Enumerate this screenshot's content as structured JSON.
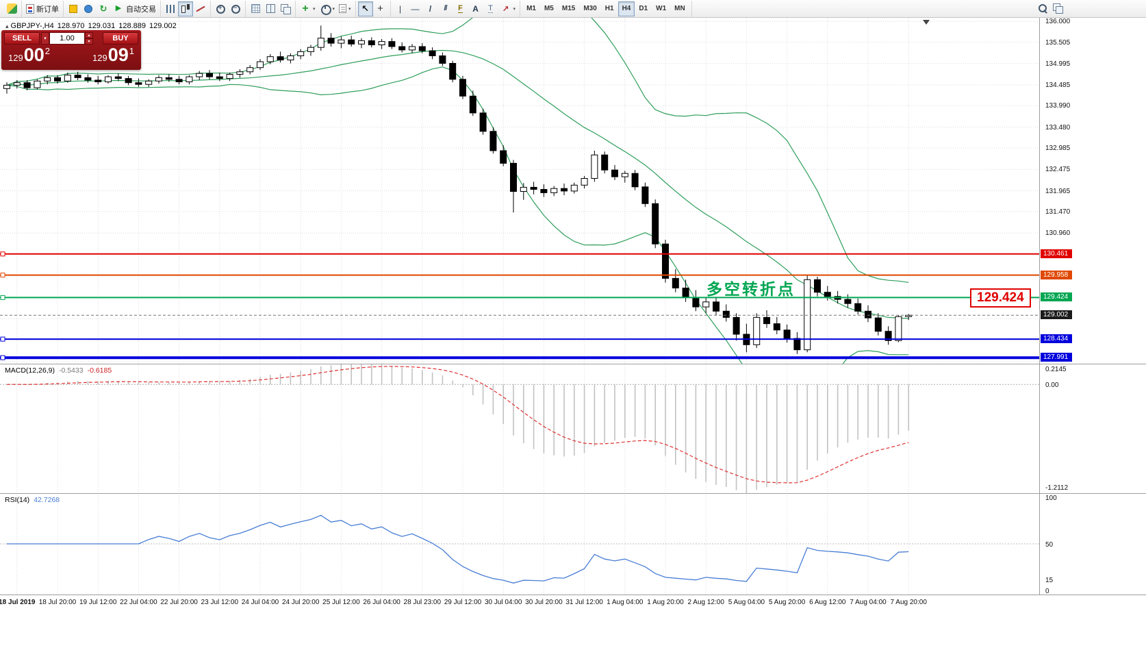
{
  "app": {
    "ohlc_header": {
      "toggle": "▴",
      "symbol_period": "GBPJPY-,H4",
      "open": "128.970",
      "high": "129.031",
      "low": "128.889",
      "close": "129.002"
    }
  },
  "toolbar": {
    "groups": [
      {
        "name": "group-app",
        "items": [
          {
            "name": "app-logo",
            "icon": "logo",
            "static": true
          }
        ]
      },
      {
        "name": "group-order",
        "items": [
          {
            "name": "new-order-button",
            "icon": "neworder",
            "label": "新订单"
          }
        ]
      },
      {
        "name": "group-launch",
        "items": [
          {
            "name": "metaeditor-button",
            "icon": "editor"
          },
          {
            "name": "market-button",
            "icon": "market"
          },
          {
            "name": "refresh-button",
            "icon": "refresh"
          },
          {
            "name": "autotrading-button",
            "icon": "play",
            "label": "自动交易"
          }
        ]
      },
      {
        "name": "group-chart-type",
        "items": [
          {
            "name": "bar-chart-button",
            "icon": "bars"
          },
          {
            "name": "candlestick-chart-button",
            "icon": "candles",
            "active": true
          },
          {
            "name": "line-chart-button",
            "icon": "linechart"
          }
        ]
      },
      {
        "name": "group-zoom",
        "items": [
          {
            "name": "zoom-in-button",
            "icon": "zoomin"
          },
          {
            "name": "zoom-out-button",
            "icon": "zoomout"
          }
        ]
      },
      {
        "name": "group-windows",
        "items": [
          {
            "name": "auto-arrange-button",
            "icon": "gridicon"
          },
          {
            "name": "tile-windows-button",
            "icon": "tile"
          },
          {
            "name": "cascade-windows-button",
            "icon": "cascade"
          }
        ]
      },
      {
        "name": "group-insert",
        "items": [
          {
            "name": "indicators-button",
            "icon": "plusind",
            "caret": true
          },
          {
            "name": "periods-button",
            "icon": "clock",
            "caret": true
          },
          {
            "name": "templates-button",
            "icon": "template",
            "caret": true
          }
        ]
      },
      {
        "name": "group-cursor",
        "items": [
          {
            "name": "cursor-button",
            "icon": "cursor",
            "active": true
          },
          {
            "name": "crosshair-button",
            "icon": "crosshair"
          }
        ]
      },
      {
        "name": "group-objects",
        "items": [
          {
            "name": "vertical-line-button",
            "icon": "vline"
          },
          {
            "name": "horizontal-line-button",
            "icon": "hline"
          },
          {
            "name": "trendline-button",
            "icon": "tline"
          },
          {
            "name": "channel-button",
            "icon": "channel"
          },
          {
            "name": "fibonacci-button",
            "icon": "fibo"
          },
          {
            "name": "text-button",
            "icon": "textT"
          },
          {
            "name": "label-button",
            "icon": "labelT"
          },
          {
            "name": "arrows-button",
            "icon": "arrows",
            "caret": true
          }
        ]
      },
      {
        "name": "group-timeframes",
        "items": [
          {
            "name": "tf-m1-button",
            "label": "M1",
            "tf": true
          },
          {
            "name": "tf-m5-button",
            "label": "M5",
            "tf": true
          },
          {
            "name": "tf-m15-button",
            "label": "M15",
            "tf": true
          },
          {
            "name": "tf-m30-button",
            "label": "M30",
            "tf": true
          },
          {
            "name": "tf-h1-button",
            "label": "H1",
            "tf": true
          },
          {
            "name": "tf-h4-button",
            "label": "H4",
            "tf": true,
            "active": true
          },
          {
            "name": "tf-d1-button",
            "label": "D1",
            "tf": true
          },
          {
            "name": "tf-w1-button",
            "label": "W1",
            "tf": true
          },
          {
            "name": "tf-mn-button",
            "label": "MN",
            "tf": true
          }
        ]
      }
    ],
    "right_items": [
      {
        "name": "search-button",
        "icon": "search"
      },
      {
        "name": "layouts-button",
        "icon": "cascade"
      }
    ]
  },
  "trade_panel": {
    "sell_label": "SELL",
    "buy_label": "BUY",
    "volume": "1.00",
    "bid": {
      "prefix": "129",
      "big": "00",
      "sup": "2"
    },
    "ask": {
      "prefix": "129",
      "big": "09",
      "sup": "1"
    }
  },
  "annotation": {
    "text": "多空转折点",
    "color": "#00a651"
  },
  "callout": {
    "text": "129.424",
    "color": "#e00000"
  },
  "indicators": {
    "macd": {
      "name": "MACD(12,26,9)",
      "value1": "-0.5433",
      "value2": "-0.6185",
      "fast": 12,
      "slow": 26,
      "signal": 9,
      "scale_labels": [
        {
          "v": 0.2145,
          "text": "0.2145"
        },
        {
          "v": 0,
          "text": "0.00"
        },
        {
          "v": -1.2112,
          "text": "-1.2112"
        }
      ]
    },
    "rsi": {
      "name": "RSI(14)",
      "value": "42.7268",
      "period": 14,
      "scale_labels": [
        {
          "v": 100,
          "text": "100"
        },
        {
          "v": 50,
          "text": "50"
        },
        {
          "v": 15,
          "text": "15"
        },
        {
          "v": 0,
          "text": "0"
        }
      ]
    }
  },
  "chart_data": {
    "type": "candlestick",
    "symbol": "GBPJPY-",
    "timeframe": "H4",
    "ohlc_current": {
      "open": 128.97,
      "high": 129.031,
      "low": 128.889,
      "close": 129.002
    },
    "price_scale": [
      136.0,
      135.505,
      134.995,
      134.485,
      133.99,
      133.48,
      132.985,
      132.475,
      131.965,
      131.47,
      130.96
    ],
    "extra_gridlines": [
      130.45,
      129.94,
      129.43,
      128.92,
      128.41,
      127.9
    ],
    "levels": [
      {
        "price": 130.461,
        "label": "130.461",
        "color": "#e00000",
        "width": 2
      },
      {
        "price": 129.958,
        "label": "129.958",
        "color": "#e04800",
        "width": 2
      },
      {
        "price": 129.424,
        "label": "129.424",
        "color": "#00a651",
        "width": 2
      },
      {
        "price": 128.434,
        "label": "128.434",
        "color": "#0000dd",
        "width": 2
      },
      {
        "price": 127.991,
        "label": "127.991",
        "color": "#0000dd",
        "width": 4
      }
    ],
    "current_price": {
      "price": 129.002,
      "label": "129.002",
      "color": "#1a1a1a"
    },
    "bollinger": {
      "period": 20,
      "deviation": 2
    },
    "colors": {
      "up": "#ffffff",
      "down": "#000000",
      "outline": "#000000",
      "bollinger": "#2e9e5b",
      "grid": "#dcdcdc",
      "macd_hist": "#c2c2c2",
      "macd_signal": "#e03030",
      "rsi": "#477dd4",
      "background": "#ffffff"
    },
    "candles": [
      [
        134.4,
        134.55,
        134.28,
        134.48
      ],
      [
        134.48,
        134.6,
        134.4,
        134.54
      ],
      [
        134.54,
        134.6,
        134.36,
        134.42
      ],
      [
        134.42,
        134.62,
        134.38,
        134.58
      ],
      [
        134.58,
        134.72,
        134.5,
        134.66
      ],
      [
        134.66,
        134.72,
        134.52,
        134.58
      ],
      [
        134.58,
        134.78,
        134.54,
        134.72
      ],
      [
        134.72,
        134.8,
        134.6,
        134.66
      ],
      [
        134.66,
        134.74,
        134.54,
        134.6
      ],
      [
        134.6,
        134.7,
        134.5,
        134.56
      ],
      [
        134.56,
        134.72,
        134.52,
        134.68
      ],
      [
        134.68,
        134.76,
        134.58,
        134.64
      ],
      [
        134.64,
        134.7,
        134.48,
        134.54
      ],
      [
        134.54,
        134.64,
        134.44,
        134.5
      ],
      [
        134.5,
        134.62,
        134.44,
        134.58
      ],
      [
        134.58,
        134.72,
        134.52,
        134.66
      ],
      [
        134.66,
        134.74,
        134.56,
        134.62
      ],
      [
        134.62,
        134.7,
        134.5,
        134.56
      ],
      [
        134.56,
        134.72,
        134.5,
        134.68
      ],
      [
        134.68,
        134.82,
        134.6,
        134.76
      ],
      [
        134.76,
        134.84,
        134.62,
        134.68
      ],
      [
        134.68,
        134.78,
        134.58,
        134.64
      ],
      [
        134.64,
        134.78,
        134.58,
        134.74
      ],
      [
        134.74,
        134.86,
        134.66,
        134.8
      ],
      [
        134.8,
        134.96,
        134.74,
        134.9
      ],
      [
        134.9,
        135.1,
        134.84,
        135.04
      ],
      [
        135.04,
        135.22,
        134.98,
        135.16
      ],
      [
        135.16,
        135.28,
        135.02,
        135.08
      ],
      [
        135.08,
        135.24,
        135.0,
        135.18
      ],
      [
        135.18,
        135.34,
        135.1,
        135.28
      ],
      [
        135.28,
        135.44,
        135.18,
        135.38
      ],
      [
        135.38,
        135.9,
        135.3,
        135.6
      ],
      [
        135.6,
        135.72,
        135.4,
        135.48
      ],
      [
        135.48,
        135.64,
        135.36,
        135.56
      ],
      [
        135.56,
        135.66,
        135.4,
        135.46
      ],
      [
        135.46,
        135.6,
        135.36,
        135.54
      ],
      [
        135.54,
        135.62,
        135.38,
        135.44
      ],
      [
        135.44,
        135.58,
        135.34,
        135.52
      ],
      [
        135.52,
        135.6,
        135.34,
        135.4
      ],
      [
        135.4,
        135.5,
        135.26,
        135.32
      ],
      [
        135.32,
        135.46,
        135.24,
        135.4
      ],
      [
        135.4,
        135.48,
        135.24,
        135.3
      ],
      [
        135.3,
        135.38,
        135.1,
        135.18
      ],
      [
        135.18,
        135.26,
        134.94,
        135.0
      ],
      [
        135.0,
        135.06,
        134.55,
        134.62
      ],
      [
        134.62,
        134.7,
        134.15,
        134.22
      ],
      [
        134.22,
        134.35,
        133.75,
        133.82
      ],
      [
        133.82,
        133.92,
        133.3,
        133.38
      ],
      [
        133.38,
        133.48,
        132.85,
        132.92
      ],
      [
        132.92,
        133.05,
        132.55,
        132.62
      ],
      [
        132.62,
        132.7,
        131.45,
        131.95
      ],
      [
        131.95,
        132.15,
        131.75,
        132.05
      ],
      [
        132.05,
        132.18,
        131.88,
        132.0
      ],
      [
        132.0,
        132.12,
        131.82,
        131.92
      ],
      [
        131.92,
        132.08,
        131.84,
        132.02
      ],
      [
        132.02,
        132.14,
        131.86,
        131.96
      ],
      [
        131.96,
        132.16,
        131.9,
        132.1
      ],
      [
        132.1,
        132.32,
        132.02,
        132.26
      ],
      [
        132.26,
        132.92,
        132.18,
        132.82
      ],
      [
        132.82,
        132.9,
        132.38,
        132.46
      ],
      [
        132.46,
        132.58,
        132.22,
        132.3
      ],
      [
        132.3,
        132.44,
        132.16,
        132.38
      ],
      [
        132.38,
        132.46,
        131.98,
        132.06
      ],
      [
        132.06,
        132.16,
        131.58,
        131.66
      ],
      [
        131.66,
        131.76,
        130.6,
        130.7
      ],
      [
        130.7,
        130.8,
        129.78,
        129.88
      ],
      [
        129.88,
        130.1,
        129.55,
        129.65
      ],
      [
        129.65,
        129.85,
        129.32,
        129.42
      ],
      [
        129.42,
        129.6,
        129.1,
        129.2
      ],
      [
        129.2,
        129.42,
        129.05,
        129.32
      ],
      [
        129.32,
        129.44,
        129.0,
        129.1
      ],
      [
        129.1,
        129.26,
        128.85,
        128.95
      ],
      [
        128.95,
        129.05,
        128.4,
        128.55
      ],
      [
        128.55,
        128.8,
        128.12,
        128.3
      ],
      [
        128.3,
        129.05,
        128.22,
        128.95
      ],
      [
        128.95,
        129.12,
        128.7,
        128.8
      ],
      [
        128.8,
        128.96,
        128.55,
        128.65
      ],
      [
        128.65,
        128.78,
        128.35,
        128.45
      ],
      [
        128.45,
        128.6,
        128.08,
        128.18
      ],
      [
        128.18,
        129.95,
        128.12,
        129.85
      ],
      [
        129.85,
        129.92,
        129.45,
        129.55
      ],
      [
        129.55,
        129.7,
        129.35,
        129.45
      ],
      [
        129.45,
        129.58,
        129.28,
        129.38
      ],
      [
        129.38,
        129.5,
        129.18,
        129.28
      ],
      [
        129.28,
        129.4,
        129.02,
        129.1
      ],
      [
        129.1,
        129.24,
        128.84,
        128.94
      ],
      [
        128.94,
        129.05,
        128.52,
        128.62
      ],
      [
        128.62,
        128.74,
        128.3,
        128.4
      ],
      [
        128.4,
        129.0,
        128.36,
        128.97
      ],
      [
        128.97,
        129.031,
        128.889,
        129.002
      ]
    ],
    "time_ticks": [
      {
        "i": 1,
        "label": "18 Jul 2019"
      },
      {
        "i": 5,
        "label": "18 Jul 20:00"
      },
      {
        "i": 9,
        "label": "19 Jul 12:00"
      },
      {
        "i": 13,
        "label": "22 Jul 04:00"
      },
      {
        "i": 17,
        "label": "22 Jul 20:00"
      },
      {
        "i": 21,
        "label": "23 Jul 12:00"
      },
      {
        "i": 25,
        "label": "24 Jul 04:00"
      },
      {
        "i": 29,
        "label": "24 Jul 20:00"
      },
      {
        "i": 33,
        "label": "25 Jul 12:00"
      },
      {
        "i": 37,
        "label": "26 Jul 04:00"
      },
      {
        "i": 41,
        "label": "28 Jul 23:00"
      },
      {
        "i": 45,
        "label": "29 Jul 12:00"
      },
      {
        "i": 49,
        "label": "30 Jul 04:00"
      },
      {
        "i": 53,
        "label": "30 Jul 20:00"
      },
      {
        "i": 57,
        "label": "31 Jul 12:00"
      },
      {
        "i": 61,
        "label": "1 Aug 04:00"
      },
      {
        "i": 65,
        "label": "1 Aug 20:00"
      },
      {
        "i": 69,
        "label": "2 Aug 12:00"
      },
      {
        "i": 73,
        "label": "5 Aug 04:00"
      },
      {
        "i": 77,
        "label": "5 Aug 20:00"
      },
      {
        "i": 81,
        "label": "6 Aug 12:00"
      },
      {
        "i": 85,
        "label": "7 Aug 04:00"
      },
      {
        "i": 89,
        "label": "7 Aug 20:00"
      }
    ]
  }
}
